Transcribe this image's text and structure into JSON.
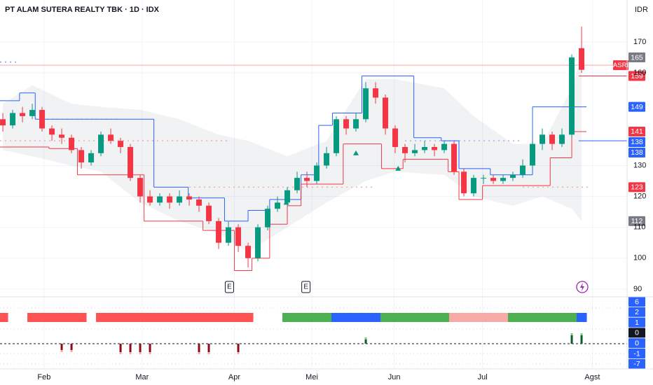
{
  "chart_data": {
    "type": "candlestick",
    "title": "PT ALAM SUTERA REALTY TBK · 1D · IDX",
    "currency": "IDR",
    "symbol": "ASRI",
    "symbol_value": 162.5,
    "up_color": "#089981",
    "down_color": "#f23645",
    "x": [
      0,
      1,
      2,
      3,
      4,
      5,
      6,
      7,
      8,
      9,
      10,
      11,
      12,
      13,
      14,
      15,
      16,
      17,
      18,
      19,
      20,
      21,
      22,
      23,
      24,
      25,
      26,
      27,
      28,
      29,
      30,
      31,
      32,
      33,
      34,
      35,
      36,
      37,
      38,
      39,
      40,
      41,
      42,
      43,
      44,
      45,
      46,
      47,
      48,
      49,
      50,
      51,
      52,
      53,
      54,
      55,
      56,
      57,
      58,
      59
    ],
    "open": [
      145,
      143,
      147,
      146,
      148,
      142,
      140,
      139,
      135,
      131,
      134,
      140,
      138,
      136,
      126,
      120,
      118,
      120,
      118,
      120,
      119,
      117,
      112,
      105,
      110,
      104,
      100,
      110,
      116,
      118,
      122,
      126,
      125,
      130,
      134,
      145,
      142,
      145,
      155,
      152,
      142,
      136,
      134,
      135,
      136,
      135,
      137,
      128,
      121,
      126,
      126,
      125,
      126,
      127,
      130,
      137,
      140,
      137,
      140,
      168
    ],
    "high": [
      147,
      148,
      149,
      150,
      149,
      143,
      142,
      140,
      136,
      135,
      141,
      142,
      139,
      137,
      127,
      122,
      121,
      121,
      122,
      121,
      120,
      118,
      113,
      112,
      111,
      105,
      111,
      117,
      120,
      123,
      128,
      128,
      131,
      136,
      146,
      146,
      147,
      157,
      157,
      153,
      143,
      137,
      137,
      138,
      137,
      138,
      138,
      129,
      127,
      127,
      127,
      127,
      128,
      132,
      138,
      142,
      141,
      142,
      166,
      175
    ],
    "low": [
      141,
      142,
      144,
      145,
      141,
      138,
      137,
      134,
      129,
      130,
      133,
      137,
      134,
      125,
      118,
      117,
      117,
      116,
      117,
      117,
      115,
      111,
      103,
      104,
      102,
      97,
      99,
      109,
      115,
      117,
      121,
      123,
      124,
      129,
      133,
      140,
      141,
      144,
      150,
      140,
      134,
      131,
      133,
      134,
      133,
      134,
      127,
      120,
      120,
      124,
      124,
      124,
      125,
      126,
      129,
      135,
      135,
      136,
      139,
      160
    ],
    "close": [
      143,
      147,
      146,
      148,
      142,
      140,
      139,
      135,
      131,
      134,
      140,
      138,
      136,
      126,
      120,
      118,
      120,
      118,
      120,
      119,
      117,
      112,
      105,
      110,
      104,
      100,
      110,
      116,
      118,
      122,
      126,
      125,
      130,
      134,
      145,
      142,
      145,
      155,
      152,
      142,
      136,
      134,
      135,
      136,
      135,
      137,
      128,
      121,
      126,
      126,
      125,
      126,
      127,
      130,
      137,
      140,
      137,
      140,
      165,
      161
    ],
    "xlim": [
      -0.29,
      63.64
    ],
    "ylim": [
      88.4,
      183.6
    ],
    "yticks": [
      90,
      100,
      110,
      120,
      130,
      160,
      170
    ],
    "xticks": [
      {
        "value": 4.2,
        "label": "Feb"
      },
      {
        "value": 14.2,
        "label": "Mar"
      },
      {
        "value": 23.6,
        "label": "Apr"
      },
      {
        "value": 31.5,
        "label": "Mei"
      },
      {
        "value": 39.9,
        "label": "Jun"
      },
      {
        "value": 48.9,
        "label": "Jul"
      },
      {
        "value": 60.1,
        "label": "Agst"
      }
    ],
    "band": {
      "color": "#787b86",
      "x": [
        0,
        3,
        7,
        10,
        14,
        18,
        22,
        25,
        29,
        33,
        37,
        40,
        45,
        48,
        52,
        55,
        58,
        59
      ],
      "upper": [
        150,
        156,
        150,
        149,
        148,
        145,
        140,
        138,
        133,
        138,
        158,
        158,
        155,
        146,
        137,
        137,
        155,
        165
      ],
      "lower": [
        135,
        133,
        130,
        128,
        118,
        112,
        108,
        102,
        110,
        118,
        125,
        128,
        127,
        120,
        117,
        120,
        116,
        112
      ]
    },
    "upper_channel": {
      "color": "#2962ff",
      "end": 59.5,
      "x": [
        -0.29,
        1.7,
        3.3,
        15.4,
        18.9,
        22.6,
        25,
        27.2,
        30.4,
        32.2,
        33.6,
        36.6,
        41.9,
        44.7,
        46.5,
        49.7,
        54
      ],
      "values": [
        151,
        153.5,
        145,
        123,
        119.5,
        112,
        115.5,
        119,
        127,
        143,
        147,
        159,
        139,
        138,
        129,
        127,
        149
      ]
    },
    "lower_channel": {
      "color": "#f23645",
      "end": 59.5,
      "x": [
        -0.29,
        4.7,
        7.6,
        14.4,
        20.4,
        23.6,
        25.4,
        27.2,
        29,
        30.4,
        34.7,
        38.6,
        40.8,
        45.4,
        46.5,
        48.9,
        55.8,
        58
      ],
      "values": [
        136,
        135.5,
        127,
        112,
        109,
        96,
        100,
        111,
        117,
        124,
        137,
        129,
        132,
        128,
        119,
        123.5,
        132.5,
        141
      ]
    },
    "levels": [
      {
        "value": 162.5,
        "color": "#f7a9a7",
        "from": -0.29,
        "to": 63.64,
        "dash": false
      },
      {
        "value": 163.5,
        "color": "#7b9cf0",
        "from": -0.29,
        "to": 1.5,
        "dash": true
      },
      {
        "value": 145,
        "color": "#f7a9a7",
        "from": 4,
        "to": 12,
        "dash": true
      },
      {
        "value": 138,
        "color": "#f7a9a7",
        "from": -0.29,
        "to": 23,
        "dash": true
      },
      {
        "value": 138,
        "color": "#9fb3f5",
        "from": 41,
        "to": 53,
        "dash": true
      },
      {
        "value": 123,
        "color": "#f7a9a7",
        "from": 19,
        "to": 38,
        "dash": true
      },
      {
        "value": 123,
        "color": "#f7a9a7",
        "from": 53,
        "to": 60,
        "dash": true
      },
      {
        "value": 159,
        "color": "#f23645",
        "from": 58.7,
        "to": 63.64,
        "dash": false
      },
      {
        "value": 138,
        "color": "#2962ff",
        "from": 58.7,
        "to": 63.64,
        "dash": false
      }
    ],
    "arrows": {
      "color": "#089981",
      "x": [
        28.9,
        36,
        40.3
      ],
      "values": [
        118,
        134,
        129
      ]
    },
    "events": [
      {
        "x": 23.1,
        "label": "E"
      },
      {
        "x": 30.9,
        "label": "E"
      }
    ],
    "price_tags": [
      {
        "value": 165,
        "color": "#787b86"
      },
      {
        "value": 159,
        "color": "#f23645"
      },
      {
        "value": 149,
        "color": "#2962ff"
      },
      {
        "value": 141,
        "color": "#f23645"
      },
      {
        "value": 138,
        "color": "#2962ff"
      },
      {
        "value": 138,
        "color": "#2962ff"
      },
      {
        "value": 123,
        "color": "#f23645"
      },
      {
        "value": 112,
        "color": "#787b86"
      }
    ],
    "regime": [
      "#ff5252",
      null,
      null,
      "#ff5252",
      "#ff5252",
      "#ff5252",
      "#ff5252",
      "#ff5252",
      "#ff5252",
      null,
      "#ff5252",
      "#ff5252",
      "#ff5252",
      "#ff5252",
      "#ff5252",
      "#ff5252",
      "#ff5252",
      "#ff5252",
      "#ff5252",
      "#ff5252",
      "#ff5252",
      "#ff5252",
      "#ff5252",
      "#ff5252",
      "#ff5252",
      "#ff5252",
      null,
      null,
      null,
      "#4caf50",
      "#4caf50",
      "#4caf50",
      "#4caf50",
      "#4caf50",
      "#2962ff",
      "#2962ff",
      "#2962ff",
      "#2962ff",
      "#2962ff",
      "#4caf50",
      "#4caf50",
      "#4caf50",
      "#4caf50",
      "#4caf50",
      "#4caf50",
      "#4caf50",
      "#f7a9a7",
      "#f7a9a7",
      "#f7a9a7",
      "#f7a9a7",
      "#f7a9a7",
      "#f7a9a7",
      "#4caf50",
      "#4caf50",
      "#4caf50",
      "#4caf50",
      "#4caf50",
      "#4caf50",
      "#4caf50",
      "#2962ff"
    ],
    "signals": [
      null,
      null,
      null,
      null,
      null,
      null,
      -3,
      -3,
      null,
      null,
      null,
      null,
      -4,
      -4,
      -4,
      -4,
      null,
      null,
      null,
      null,
      -4,
      -4,
      null,
      null,
      -4,
      null,
      null,
      null,
      null,
      null,
      null,
      null,
      null,
      null,
      null,
      null,
      null,
      2,
      null,
      null,
      null,
      null,
      null,
      null,
      null,
      null,
      null,
      null,
      null,
      null,
      null,
      null,
      null,
      null,
      null,
      null,
      null,
      null,
      4,
      4
    ],
    "pane2_tags": [
      {
        "value": 6,
        "color": "#2962ff"
      },
      {
        "value": 2,
        "color": "#2962ff"
      },
      {
        "value": 1,
        "color": "#2962ff"
      },
      {
        "value": 0,
        "color": "#131722"
      },
      {
        "value": 0,
        "color": "#2962ff"
      },
      {
        "value": -1,
        "color": "#2962ff"
      },
      {
        "value": -7,
        "color": "#2962ff"
      }
    ]
  }
}
